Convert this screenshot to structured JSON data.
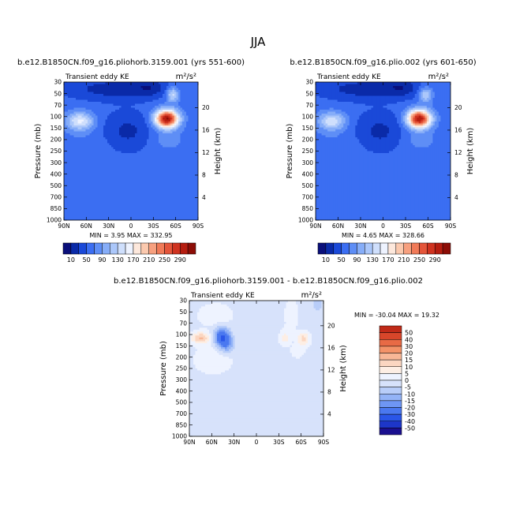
{
  "figure": {
    "title": "JJA",
    "units_label": "m²/s²"
  },
  "colors": {
    "seq": [
      "#0a0f7a",
      "#0a2aa8",
      "#1a49d8",
      "#3b6ef2",
      "#5e8ef6",
      "#86adf8",
      "#abc7fa",
      "#cfdffc",
      "#eef3ff",
      "#fde8dc",
      "#fbc9ae",
      "#f7a07f",
      "#f07a58",
      "#e4553a",
      "#cf3320",
      "#b51d10",
      "#8c0d06",
      "#5e0603"
    ],
    "div": [
      "#1a0f8f",
      "#1d36c8",
      "#2a56e8",
      "#4a78f0",
      "#6e96f4",
      "#93b3f7",
      "#b8cdf9",
      "#d7e2fb",
      "#eef3ff",
      "#fdeee4",
      "#fbd6c1",
      "#f8b797",
      "#f39268",
      "#e86a45",
      "#d8462a",
      "#c02a18",
      "#9a140a",
      "#720803"
    ]
  },
  "chart_data": [
    {
      "type": "heatmap",
      "name": "control",
      "title": "b.e12.B1850CN.f09_g16.pliohorb.3159.001 (yrs 551-600)",
      "left_label": "Transient eddy KE",
      "right_label": "m²/s²",
      "xlabel": "",
      "ylabel": "Pressure (mb)",
      "y2label": "Height (km)",
      "x_ticks": [
        "90N",
        "60N",
        "30N",
        "0",
        "30S",
        "60S",
        "90S"
      ],
      "y_ticks": [
        "30",
        "50",
        "70",
        "100",
        "150",
        "200",
        "250",
        "300",
        "400",
        "500",
        "700",
        "850",
        "1000"
      ],
      "y2_ticks": [
        "20",
        "16",
        "12",
        "8",
        "4"
      ],
      "ylim": [
        1000,
        30
      ],
      "stats": "MIN =    3.95   MAX =  332.95",
      "colorbar": [
        "10",
        "50",
        "90",
        "130",
        "170",
        "210",
        "250",
        "290"
      ],
      "field": {
        "bg": 60,
        "blobs": [
          {
            "lat": -48,
            "lev": 3.2,
            "slat": 11,
            "slev": 0.55,
            "amp": 255
          },
          {
            "lat": -56,
            "lev": 1.1,
            "slat": 6,
            "slev": 0.45,
            "amp": 80
          },
          {
            "lat": 68,
            "lev": 3.4,
            "slat": 13,
            "slev": 0.55,
            "amp": 95
          },
          {
            "lat": 5,
            "lev": 4.3,
            "slat": 25,
            "slev": 1.2,
            "amp": -35
          },
          {
            "lat": 25,
            "lev": 0.6,
            "slat": 45,
            "slev": 0.7,
            "amp": -40
          },
          {
            "lat": -25,
            "lev": 0.4,
            "slat": 15,
            "slev": 0.6,
            "amp": -30
          },
          {
            "lat": -48,
            "lev": 5.0,
            "slat": 16,
            "slev": 0.7,
            "amp": 20
          },
          {
            "lat": 60,
            "lev": 5.2,
            "slat": 25,
            "slev": 0.8,
            "amp": 10
          }
        ]
      }
    },
    {
      "type": "heatmap",
      "name": "experiment",
      "title": "b.e12.B1850CN.f09_g16.plio.002 (yrs 601-650)",
      "left_label": "Transient eddy KE",
      "right_label": "m²/s²",
      "xlabel": "",
      "ylabel": "Pressure (mb)",
      "y2label": "Height (km)",
      "x_ticks": [
        "90N",
        "60N",
        "30N",
        "0",
        "30S",
        "60S",
        "90S"
      ],
      "y_ticks": [
        "30",
        "50",
        "70",
        "100",
        "150",
        "200",
        "250",
        "300",
        "400",
        "500",
        "700",
        "850",
        "1000"
      ],
      "y2_ticks": [
        "20",
        "16",
        "12",
        "8",
        "4"
      ],
      "ylim": [
        1000,
        30
      ],
      "stats": "MIN =    4.65   MAX =  328.66",
      "colorbar": [
        "10",
        "50",
        "90",
        "130",
        "170",
        "210",
        "250",
        "290"
      ],
      "field": {
        "bg": 60,
        "blobs": [
          {
            "lat": -48,
            "lev": 3.2,
            "slat": 11,
            "slev": 0.55,
            "amp": 250
          },
          {
            "lat": -57,
            "lev": 1.1,
            "slat": 6,
            "slev": 0.45,
            "amp": 75
          },
          {
            "lat": 68,
            "lev": 3.4,
            "slat": 13,
            "slev": 0.55,
            "amp": 85
          },
          {
            "lat": 5,
            "lev": 4.3,
            "slat": 25,
            "slev": 1.2,
            "amp": -35
          },
          {
            "lat": 25,
            "lev": 0.6,
            "slat": 45,
            "slev": 0.7,
            "amp": -40
          },
          {
            "lat": -25,
            "lev": 0.4,
            "slat": 15,
            "slev": 0.6,
            "amp": -30
          },
          {
            "lat": -48,
            "lev": 5.0,
            "slat": 16,
            "slev": 0.7,
            "amp": 20
          },
          {
            "lat": 60,
            "lev": 5.2,
            "slat": 25,
            "slev": 0.8,
            "amp": 10
          }
        ]
      }
    },
    {
      "type": "heatmap",
      "name": "difference",
      "title": "b.e12.B1850CN.f09_g16.pliohorb.3159.001 - b.e12.B1850CN.f09_g16.plio.002",
      "left_label": "Transient eddy KE",
      "right_label": "m²/s²",
      "xlabel": "",
      "ylabel": "Pressure (mb)",
      "y2label": "Height (km)",
      "x_ticks": [
        "90N",
        "60N",
        "30N",
        "0",
        "30S",
        "60S",
        "90S"
      ],
      "y_ticks": [
        "30",
        "50",
        "70",
        "100",
        "150",
        "200",
        "250",
        "300",
        "400",
        "500",
        "700",
        "850",
        "1000"
      ],
      "y2_ticks": [
        "20",
        "16",
        "12",
        "8",
        "4"
      ],
      "ylim": [
        1000,
        30
      ],
      "stats": "MIN = -30.04   MAX =  19.32",
      "colorbar": [
        "50",
        "40",
        "30",
        "20",
        "15",
        "10",
        "5",
        "0",
        "-5",
        "-10",
        "-15",
        "-20",
        "-30",
        "-40",
        "-50"
      ],
      "field": {
        "bg": -2,
        "blobs": [
          {
            "lat": 46,
            "lev": 3.2,
            "slat": 7,
            "slev": 0.55,
            "amp": -28
          },
          {
            "lat": 40,
            "lev": 3.9,
            "slat": 7,
            "slev": 0.5,
            "amp": -14
          },
          {
            "lat": 75,
            "lev": 3.3,
            "slat": 9,
            "slev": 0.35,
            "amp": 17
          },
          {
            "lat": -63,
            "lev": 3.4,
            "slat": 6,
            "slev": 0.45,
            "amp": 14
          },
          {
            "lat": -38,
            "lev": 3.3,
            "slat": 5,
            "slev": 0.5,
            "amp": 9
          },
          {
            "lat": -47,
            "lev": 1.2,
            "slat": 6,
            "slev": 0.9,
            "amp": 7
          },
          {
            "lat": 55,
            "lev": 1.3,
            "slat": 18,
            "slev": 0.8,
            "amp": 5
          },
          {
            "lat": 58,
            "lev": 5.2,
            "slat": 20,
            "slev": 1.0,
            "amp": 5
          },
          {
            "lat": -82,
            "lev": 0.3,
            "slat": 4,
            "slev": 0.5,
            "amp": -6
          },
          {
            "lat": -55,
            "lev": 4.5,
            "slat": 6,
            "slev": 0.4,
            "amp": 6
          }
        ]
      }
    }
  ]
}
